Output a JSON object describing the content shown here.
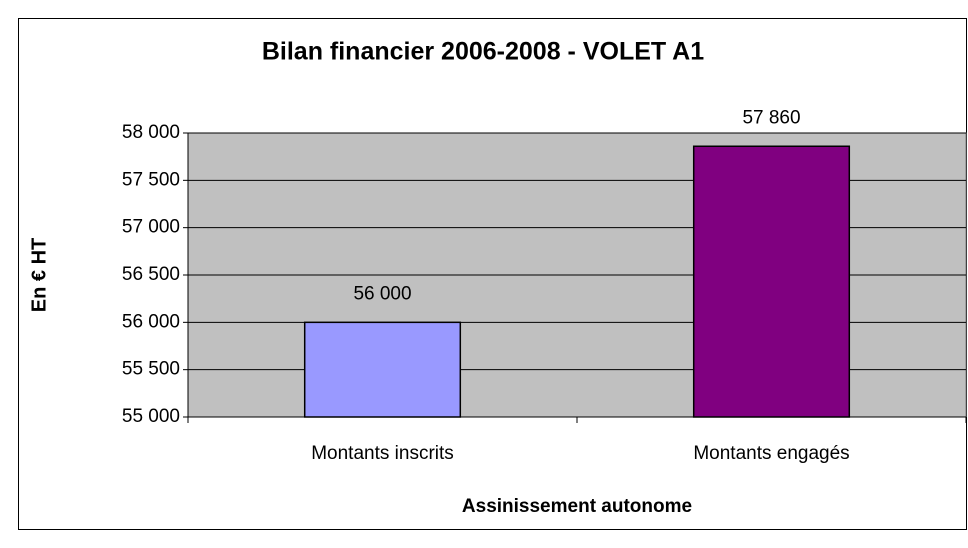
{
  "chart_data": {
    "type": "bar",
    "title": "Bilan financier 2006-2008 - VOLET A1",
    "y_label": "En € HT",
    "x_label": "Assinissement autonome",
    "categories": [
      "Montants inscrits",
      "Montants engagés"
    ],
    "values": [
      56000,
      57860
    ],
    "value_labels": [
      "56 000",
      "57 860"
    ],
    "colors": [
      "#9999ff",
      "#800080"
    ],
    "ylim": [
      55000,
      58000
    ],
    "yticks": [
      {
        "value": 55000,
        "label": "55 000"
      },
      {
        "value": 55500,
        "label": "55 500"
      },
      {
        "value": 56000,
        "label": "56 000"
      },
      {
        "value": 56500,
        "label": "56 500"
      },
      {
        "value": 57000,
        "label": "57 000"
      },
      {
        "value": 57500,
        "label": "57 500"
      },
      {
        "value": 58000,
        "label": "58 000"
      }
    ],
    "grid": true,
    "plot_background": "#c0c0c0"
  }
}
